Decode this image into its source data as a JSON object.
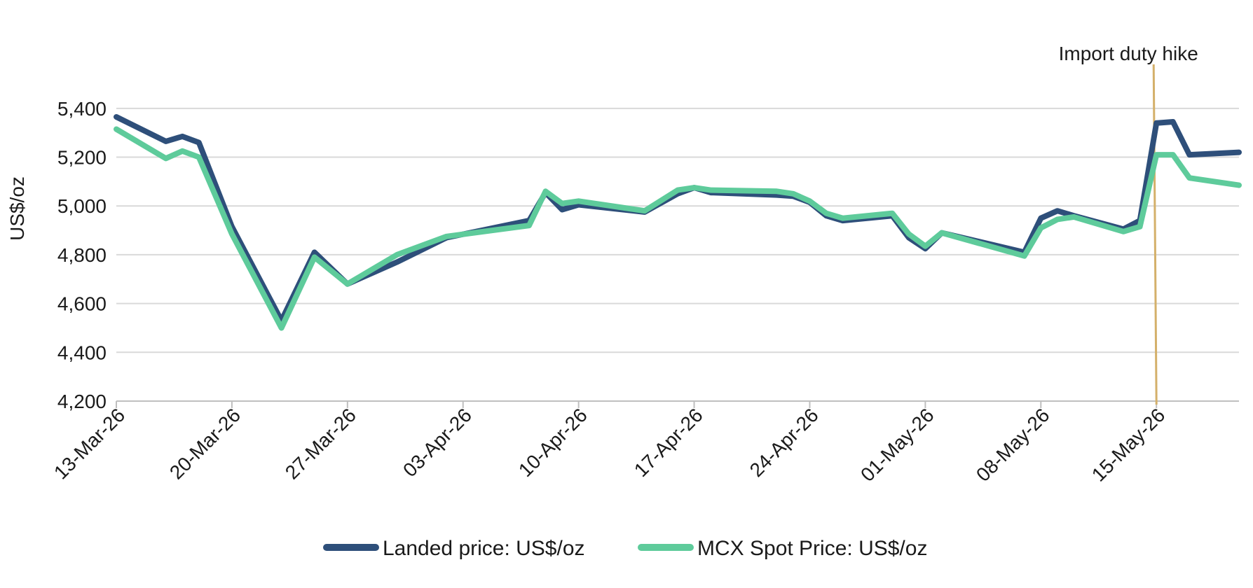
{
  "chart_data": {
    "type": "line",
    "ylabel": "US$/oz",
    "xlabel": "",
    "ylim": [
      4200,
      5500
    ],
    "yticks": [
      4200,
      4400,
      4600,
      4800,
      5000,
      5200,
      5400
    ],
    "ytick_labels": [
      "4,200",
      "4,400",
      "4,600",
      "4,800",
      "5,000",
      "5,200",
      "5,400"
    ],
    "xlim": [
      "2026-03-13",
      "2026-05-20"
    ],
    "xticks": [
      "2026-03-13",
      "2026-03-20",
      "2026-03-27",
      "2026-04-03",
      "2026-04-10",
      "2026-04-17",
      "2026-04-24",
      "2026-05-01",
      "2026-05-08",
      "2026-05-15"
    ],
    "xtick_labels": [
      "13-Mar-26",
      "20-Mar-26",
      "27-Mar-26",
      "03-Apr-26",
      "10-Apr-26",
      "17-Apr-26",
      "24-Apr-26",
      "01-May-26",
      "08-May-26",
      "15-May-26"
    ],
    "grid": true,
    "legend_position": "bottom",
    "series": [
      {
        "name": "Landed price: US$/oz",
        "color": "#2e4f7a",
        "points": [
          [
            "2026-03-13",
            5365
          ],
          [
            "2026-03-16",
            5265
          ],
          [
            "2026-03-17",
            5285
          ],
          [
            "2026-03-18",
            5260
          ],
          [
            "2026-03-20",
            4915
          ],
          [
            "2026-03-23",
            4530
          ],
          [
            "2026-03-25",
            4810
          ],
          [
            "2026-03-27",
            4680
          ],
          [
            "2026-03-30",
            4770
          ],
          [
            "2026-04-02",
            4870
          ],
          [
            "2026-04-07",
            4940
          ],
          [
            "2026-04-08",
            5055
          ],
          [
            "2026-04-09",
            4985
          ],
          [
            "2026-04-10",
            5005
          ],
          [
            "2026-04-14",
            4975
          ],
          [
            "2026-04-16",
            5050
          ],
          [
            "2026-04-17",
            5075
          ],
          [
            "2026-04-18",
            5055
          ],
          [
            "2026-04-22",
            5045
          ],
          [
            "2026-04-23",
            5040
          ],
          [
            "2026-04-24",
            5015
          ],
          [
            "2026-04-25",
            4960
          ],
          [
            "2026-04-26",
            4940
          ],
          [
            "2026-04-29",
            4960
          ],
          [
            "2026-04-30",
            4870
          ],
          [
            "2026-05-01",
            4825
          ],
          [
            "2026-05-02",
            4890
          ],
          [
            "2026-05-07",
            4810
          ],
          [
            "2026-05-08",
            4950
          ],
          [
            "2026-05-09",
            4980
          ],
          [
            "2026-05-10",
            4960
          ],
          [
            "2026-05-13",
            4905
          ],
          [
            "2026-05-14",
            4940
          ],
          [
            "2026-05-15",
            5340
          ],
          [
            "2026-05-16",
            5345
          ],
          [
            "2026-05-17",
            5210
          ],
          [
            "2026-05-20",
            5220
          ]
        ]
      },
      {
        "name": "MCX Spot Price: US$/oz",
        "color": "#5ecb9b",
        "points": [
          [
            "2026-03-13",
            5315
          ],
          [
            "2026-03-16",
            5195
          ],
          [
            "2026-03-17",
            5225
          ],
          [
            "2026-03-18",
            5200
          ],
          [
            "2026-03-20",
            4885
          ],
          [
            "2026-03-23",
            4500
          ],
          [
            "2026-03-25",
            4790
          ],
          [
            "2026-03-27",
            4680
          ],
          [
            "2026-03-30",
            4800
          ],
          [
            "2026-04-02",
            4875
          ],
          [
            "2026-04-07",
            4920
          ],
          [
            "2026-04-08",
            5060
          ],
          [
            "2026-04-09",
            5010
          ],
          [
            "2026-04-10",
            5020
          ],
          [
            "2026-04-14",
            4980
          ],
          [
            "2026-04-16",
            5065
          ],
          [
            "2026-04-17",
            5075
          ],
          [
            "2026-04-18",
            5065
          ],
          [
            "2026-04-22",
            5060
          ],
          [
            "2026-04-23",
            5050
          ],
          [
            "2026-04-24",
            5020
          ],
          [
            "2026-04-25",
            4970
          ],
          [
            "2026-04-26",
            4950
          ],
          [
            "2026-04-29",
            4970
          ],
          [
            "2026-04-30",
            4885
          ],
          [
            "2026-05-01",
            4835
          ],
          [
            "2026-05-02",
            4890
          ],
          [
            "2026-05-07",
            4795
          ],
          [
            "2026-05-08",
            4910
          ],
          [
            "2026-05-09",
            4945
          ],
          [
            "2026-05-10",
            4955
          ],
          [
            "2026-05-13",
            4895
          ],
          [
            "2026-05-14",
            4915
          ],
          [
            "2026-05-15",
            5210
          ],
          [
            "2026-05-16",
            5210
          ],
          [
            "2026-05-17",
            5115
          ],
          [
            "2026-05-20",
            5085
          ]
        ]
      }
    ],
    "annotations": [
      {
        "text": "Import duty hike",
        "x": "2026-05-15",
        "color": "#d4b06a"
      }
    ]
  }
}
